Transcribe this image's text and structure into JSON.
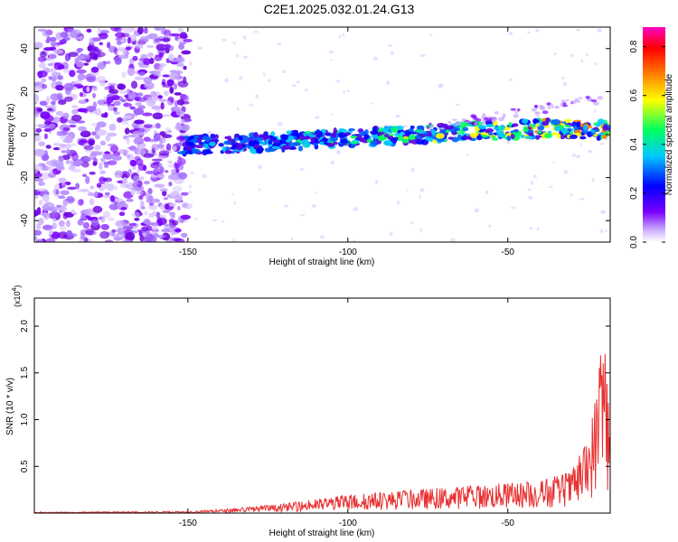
{
  "title": "C2E1.2025.032.01.24.G13",
  "chart_data": [
    {
      "type": "heatmap",
      "xlabel": "Height of straight line (km)",
      "ylabel": "Frequency (Hz)",
      "xlim": [
        -198,
        -18
      ],
      "ylim": [
        -50,
        50
      ],
      "x_ticks": [
        -150,
        -100,
        -50
      ],
      "x_tick_labels": [
        "-150",
        "-100",
        "-50"
      ],
      "y_ticks": [
        -40,
        -20,
        0,
        20,
        40
      ],
      "y_tick_labels": [
        "-40",
        "-20",
        "0",
        "20",
        "40"
      ],
      "band": {
        "x": [
          -152,
          -130,
          -110,
          -90,
          -70,
          -50,
          -35,
          -20
        ],
        "center_freq_hz": [
          -5,
          -4,
          -2,
          -1,
          1,
          2,
          3,
          2
        ]
      },
      "colorbar": {
        "label": "Normalized spectral amplitude",
        "range": [
          0,
          0.88
        ],
        "ticks": [
          0,
          0.2,
          0.4,
          0.6,
          0.8
        ],
        "tick_labels": [
          "0.0",
          "0.2",
          "0.4",
          "0.6",
          "0.8"
        ],
        "colors": [
          "#ffffff",
          "#c9a8ff",
          "#7a00ff",
          "#0000ff",
          "#00c8ff",
          "#00ff60",
          "#ffff00",
          "#ff8000",
          "#ff0000",
          "#ff00c0"
        ]
      }
    },
    {
      "type": "line",
      "xlabel": "Height of straight line (km)",
      "ylabel": "SNR (10 * v/v)",
      "y_multiplier_label": "(x10",
      "y_multiplier_exp": "4",
      "xlim": [
        -198,
        -18
      ],
      "ylim": [
        0,
        2.3
      ],
      "x_ticks": [
        -150,
        -100,
        -50
      ],
      "x_tick_labels": [
        "-150",
        "-100",
        "-50"
      ],
      "y_ticks": [
        0.5,
        1.0,
        1.5,
        2.0
      ],
      "y_tick_labels": [
        "0.5",
        "1.0",
        "1.5",
        "2.0"
      ],
      "color": "#e83030",
      "envelope": {
        "x": [
          -198,
          -150,
          -140,
          -120,
          -100,
          -80,
          -60,
          -40,
          -30,
          -25,
          -22,
          -20,
          -18
        ],
        "y": [
          0.01,
          0.02,
          0.04,
          0.1,
          0.2,
          0.25,
          0.3,
          0.35,
          0.45,
          0.8,
          1.4,
          2.3,
          0.9
        ]
      }
    }
  ]
}
